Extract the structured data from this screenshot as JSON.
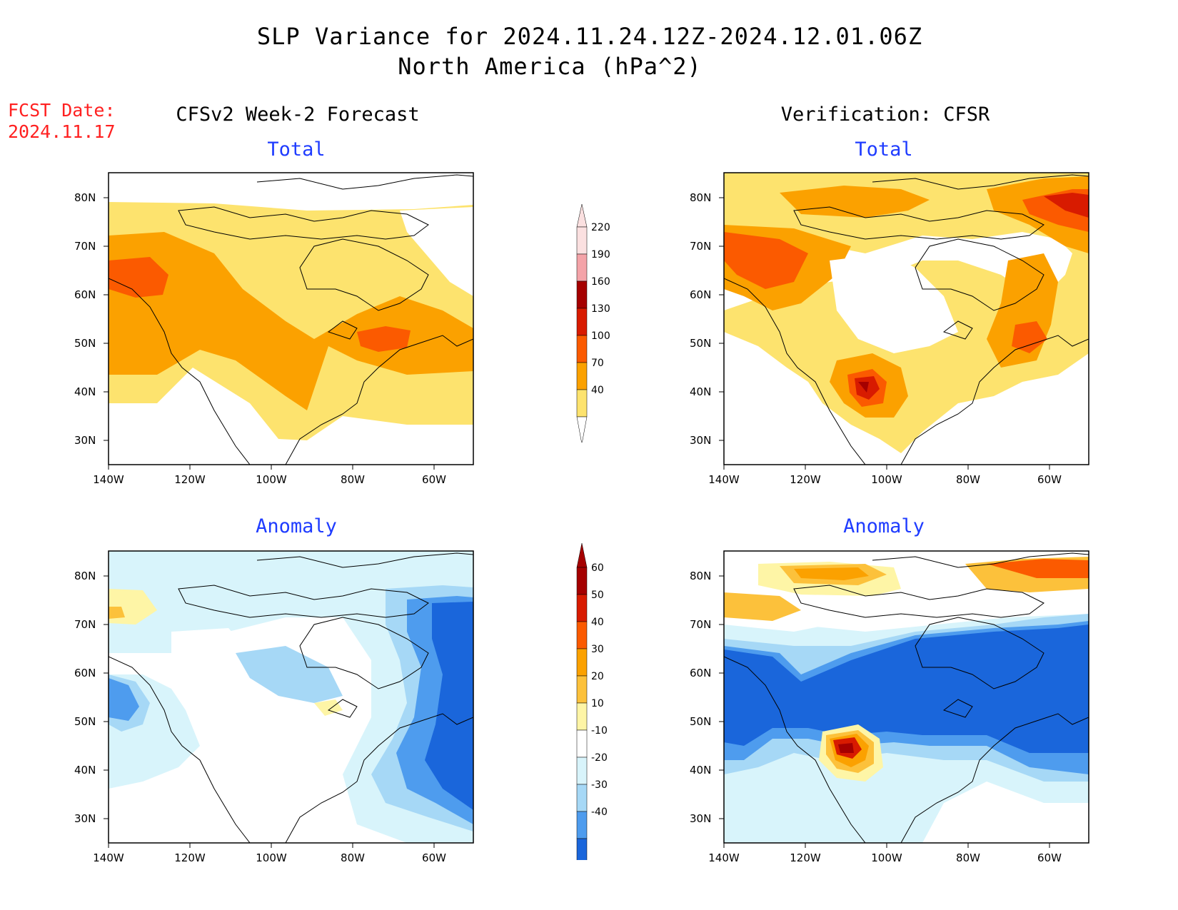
{
  "header": {
    "title_line1": "SLP Variance for 2024.11.24.12Z-2024.12.01.06Z",
    "title_line2": "North America (hPa^2)",
    "fcst_label": "FCST Date:",
    "fcst_date": "2024.11.17",
    "left_column": "CFSv2 Week-2 Forecast",
    "right_column": "Verification: CFSR"
  },
  "panels": {
    "forecast_total": "Total",
    "forecast_anomaly": "Anomaly",
    "verification_total": "Total",
    "verification_anomaly": "Anomaly"
  },
  "axes": {
    "lat_ticks": [
      "80N",
      "70N",
      "60N",
      "50N",
      "40N",
      "30N"
    ],
    "lon_ticks": [
      "140W",
      "120W",
      "100W",
      "80W",
      "60W"
    ]
  },
  "colorbars": {
    "total": {
      "levels": [
        "220",
        "190",
        "160",
        "130",
        "100",
        "70",
        "40"
      ],
      "colors": [
        "#fbe0e0",
        "#f4a3a8",
        "#a50000",
        "#d81b00",
        "#fb5a00",
        "#fba100",
        "#fde36e"
      ]
    },
    "anomaly": {
      "levels": [
        "60",
        "50",
        "40",
        "30",
        "20",
        "10",
        "-10",
        "-20",
        "-30",
        "-40"
      ],
      "colors": [
        "#a50000",
        "#d81b00",
        "#fb5a00",
        "#fba100",
        "#fcc13b",
        "#fef5a6",
        "#ffffff",
        "#d8f4fb",
        "#a6d8f6",
        "#4e9cee",
        "#1a66db"
      ]
    }
  },
  "chart_data": {
    "type": "map",
    "region": "North America",
    "quantity": "SLP Variance",
    "units": "hPa^2",
    "lon_range": [
      -140,
      -50
    ],
    "lat_range": [
      25,
      85
    ]
  }
}
